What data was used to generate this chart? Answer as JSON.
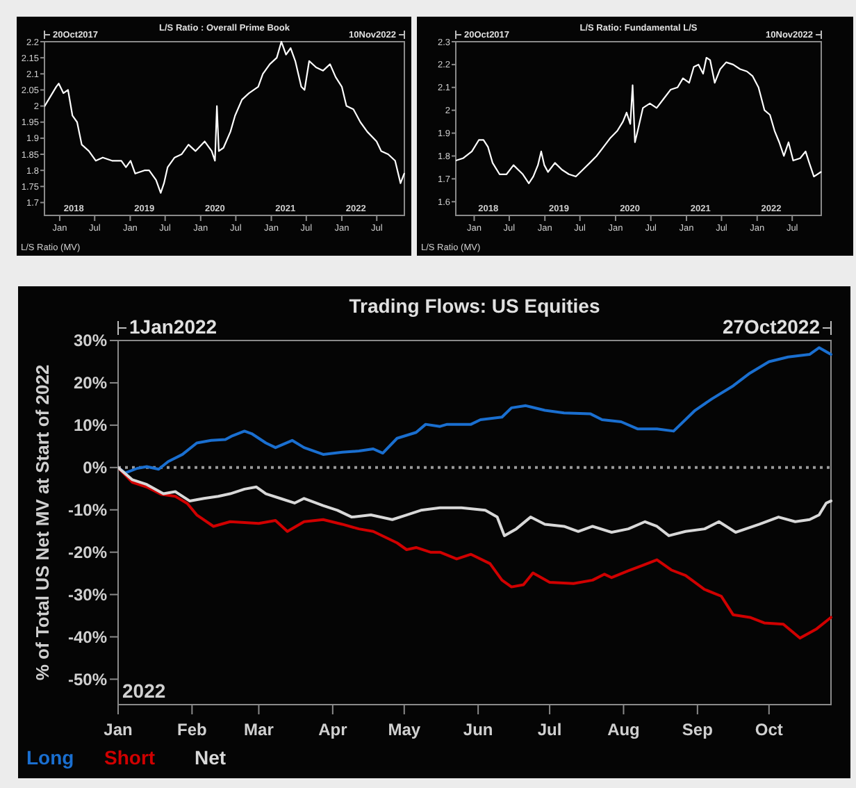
{
  "chart_data": [
    {
      "type": "line",
      "title": "L/S Ratio : Overall Prime Book",
      "ylabel": "L/S Ratio (MV)",
      "annotations": [
        "20Oct2017",
        "10Nov2022"
      ],
      "legend": false,
      "grid": false,
      "xlim": [
        "2017-10-14",
        "2022-11-21"
      ],
      "ylim": [
        1.66,
        2.2
      ],
      "xticks": [
        {
          "value": "2018-01-01",
          "label": "Jan"
        },
        {
          "value": "2018-07-01",
          "label": "Jul"
        },
        {
          "value": "2019-01-01",
          "label": "Jan"
        },
        {
          "value": "2019-07-01",
          "label": "Jul"
        },
        {
          "value": "2020-01-01",
          "label": "Jan"
        },
        {
          "value": "2020-07-01",
          "label": "Jul"
        },
        {
          "value": "2021-01-01",
          "label": "Jan"
        },
        {
          "value": "2021-07-01",
          "label": "Jul"
        },
        {
          "value": "2022-01-01",
          "label": "Jan"
        },
        {
          "value": "2022-07-01",
          "label": "Jul"
        }
      ],
      "x2lim": [
        "2017-10-14",
        "2022-11-21"
      ],
      "x2ticks": [
        {
          "value": "2018-03-15",
          "label": "2018"
        },
        {
          "value": "2019-03-15",
          "label": "2019"
        },
        {
          "value": "2020-03-15",
          "label": "2020"
        },
        {
          "value": "2021-03-15",
          "label": "2021"
        },
        {
          "value": "2022-03-15",
          "label": "2022"
        }
      ],
      "yticks": [
        1.7,
        1.75,
        1.8,
        1.85,
        1.9,
        1.95,
        2,
        2.05,
        2.1,
        2.15,
        2.2
      ],
      "series": [
        {
          "color": "#ffffff",
          "x": [
            "2017-10-15",
            "2017-12-14",
            "2017-12-27",
            "2018-01-20",
            "2018-02-13",
            "2018-03-08",
            "2018-04-01",
            "2018-04-25",
            "2018-06-01",
            "2018-07-07",
            "2018-08-12",
            "2018-09-29",
            "2018-11-16",
            "2018-12-10",
            "2019-01-03",
            "2019-01-27",
            "2019-03-16",
            "2019-04-09",
            "2019-05-15",
            "2019-06-08",
            "2019-06-25",
            "2019-07-14",
            "2019-08-19",
            "2019-09-24",
            "2019-10-30",
            "2019-12-05",
            "2020-01-22",
            "2020-02-27",
            "2020-03-15",
            "2020-03-25",
            "2020-04-04",
            "2020-04-28",
            "2020-06-03",
            "2020-06-27",
            "2020-08-02",
            "2020-09-07",
            "2020-10-25",
            "2020-11-18",
            "2020-12-24",
            "2021-01-29",
            "2021-02-22",
            "2021-03-18",
            "2021-04-11",
            "2021-05-05",
            "2021-06-05",
            "2021-06-22",
            "2021-07-16",
            "2021-08-21",
            "2021-09-26",
            "2021-11-01",
            "2021-11-30",
            "2022-01-01",
            "2022-01-25",
            "2022-03-02",
            "2022-04-07",
            "2022-05-13",
            "2022-06-30",
            "2022-07-24",
            "2022-08-29",
            "2022-10-04",
            "2022-11-01",
            "2022-11-20"
          ],
          "values": [
            2.0,
            2.06,
            2.07,
            2.04,
            2.05,
            1.97,
            1.95,
            1.88,
            1.86,
            1.83,
            1.84,
            1.83,
            1.83,
            1.81,
            1.83,
            1.79,
            1.8,
            1.8,
            1.77,
            1.73,
            1.76,
            1.81,
            1.84,
            1.85,
            1.88,
            1.86,
            1.89,
            1.86,
            1.83,
            2.0,
            1.86,
            1.87,
            1.92,
            1.97,
            2.02,
            2.04,
            2.06,
            2.1,
            2.13,
            2.15,
            2.2,
            2.16,
            2.18,
            2.14,
            2.06,
            2.05,
            2.14,
            2.12,
            2.11,
            2.13,
            2.09,
            2.06,
            2.0,
            1.99,
            1.95,
            1.92,
            1.89,
            1.86,
            1.85,
            1.83,
            1.76,
            1.79
          ]
        }
      ]
    },
    {
      "type": "line",
      "title": "L/S Ratio: Fundamental L/S",
      "ylabel": "L/S Ratio (MV)",
      "annotations": [
        "20Oct2017",
        "10Nov2022"
      ],
      "legend": false,
      "grid": false,
      "xlim": [
        "2017-09-28",
        "2022-11-28"
      ],
      "ylim": [
        1.54,
        2.3
      ],
      "xticks": [
        {
          "value": "2018-01-01",
          "label": "Jan"
        },
        {
          "value": "2018-07-01",
          "label": "Jul"
        },
        {
          "value": "2019-01-01",
          "label": "Jan"
        },
        {
          "value": "2019-07-01",
          "label": "Jul"
        },
        {
          "value": "2020-01-01",
          "label": "Jan"
        },
        {
          "value": "2020-07-01",
          "label": "Jul"
        },
        {
          "value": "2021-01-01",
          "label": "Jan"
        },
        {
          "value": "2021-07-01",
          "label": "Jul"
        },
        {
          "value": "2022-01-01",
          "label": "Jan"
        },
        {
          "value": "2022-07-01",
          "label": "Jul"
        }
      ],
      "x2lim": [
        "2017-09-28",
        "2022-11-28"
      ],
      "x2ticks": [
        {
          "value": "2018-03-15",
          "label": "2018"
        },
        {
          "value": "2019-03-15",
          "label": "2019"
        },
        {
          "value": "2020-03-15",
          "label": "2020"
        },
        {
          "value": "2021-03-15",
          "label": "2021"
        },
        {
          "value": "2022-03-15",
          "label": "2022"
        }
      ],
      "yticks": [
        1.6,
        1.7,
        1.8,
        1.9,
        2,
        2.1,
        2.2,
        2.3
      ],
      "series": [
        {
          "color": "#ffffff",
          "x": [
            "2017-09-28",
            "2017-11-04",
            "2017-12-20",
            "2018-01-25",
            "2018-02-18",
            "2018-03-13",
            "2018-04-06",
            "2018-05-12",
            "2018-06-17",
            "2018-07-23",
            "2018-08-16",
            "2018-09-09",
            "2018-10-10",
            "2018-11-02",
            "2018-11-26",
            "2018-12-13",
            "2018-12-29",
            "2019-01-17",
            "2019-02-22",
            "2019-03-30",
            "2019-05-05",
            "2019-06-10",
            "2019-07-16",
            "2019-08-21",
            "2019-09-25",
            "2019-10-31",
            "2019-12-06",
            "2020-01-10",
            "2020-02-08",
            "2020-02-27",
            "2020-03-17",
            "2020-03-29",
            "2020-04-10",
            "2020-04-27",
            "2020-05-21",
            "2020-06-26",
            "2020-07-31",
            "2020-09-05",
            "2020-10-11",
            "2020-11-16",
            "2020-12-14",
            "2021-01-15",
            "2021-02-08",
            "2021-03-04",
            "2021-03-28",
            "2021-04-14",
            "2021-05-03",
            "2021-05-27",
            "2021-06-24",
            "2021-07-25",
            "2021-08-30",
            "2021-10-05",
            "2021-11-09",
            "2021-12-08",
            "2022-01-08",
            "2022-02-08",
            "2022-03-08",
            "2022-04-01",
            "2022-04-25",
            "2022-05-19",
            "2022-06-12",
            "2022-07-06",
            "2022-08-11",
            "2022-09-08",
            "2022-09-27",
            "2022-10-21",
            "2022-11-26"
          ],
          "values": [
            1.78,
            1.79,
            1.82,
            1.87,
            1.87,
            1.84,
            1.77,
            1.72,
            1.72,
            1.76,
            1.74,
            1.72,
            1.68,
            1.71,
            1.76,
            1.82,
            1.76,
            1.73,
            1.77,
            1.74,
            1.72,
            1.71,
            1.74,
            1.77,
            1.8,
            1.84,
            1.88,
            1.91,
            1.95,
            1.99,
            1.94,
            2.11,
            1.86,
            1.92,
            2.01,
            2.03,
            2.01,
            2.05,
            2.09,
            2.1,
            2.14,
            2.12,
            2.19,
            2.2,
            2.16,
            2.23,
            2.22,
            2.12,
            2.18,
            2.21,
            2.2,
            2.18,
            2.17,
            2.15,
            2.1,
            2.0,
            1.98,
            1.91,
            1.86,
            1.8,
            1.86,
            1.78,
            1.79,
            1.82,
            1.77,
            1.71,
            1.73
          ]
        }
      ]
    },
    {
      "type": "line",
      "title": "Trading Flows: US Equities",
      "ylabel": "% of Total US Net MV at Start of 2022",
      "annotations": [
        "1Jan2022",
        "27Oct2022",
        "2022"
      ],
      "legend": "bottom left",
      "grid": false,
      "xlim": [
        "2022-01-01",
        "2022-10-27"
      ],
      "ylim": [
        -56,
        30
      ],
      "xticks": [
        {
          "value": "2022-01-01",
          "label": "Jan"
        },
        {
          "value": "2022-02-01",
          "label": "Feb"
        },
        {
          "value": "2022-03-01",
          "label": "Mar"
        },
        {
          "value": "2022-04-01",
          "label": "Apr"
        },
        {
          "value": "2022-05-01",
          "label": "May"
        },
        {
          "value": "2022-06-01",
          "label": "Jun"
        },
        {
          "value": "2022-07-01",
          "label": "Jul"
        },
        {
          "value": "2022-08-01",
          "label": "Aug"
        },
        {
          "value": "2022-09-01",
          "label": "Sep"
        },
        {
          "value": "2022-10-01",
          "label": "Oct"
        }
      ],
      "yticks": [
        {
          "value": 30,
          "label": "30%"
        },
        {
          "value": 20,
          "label": "20%"
        },
        {
          "value": 10,
          "label": "10%"
        },
        {
          "value": 0,
          "label": "0%"
        },
        {
          "value": -10,
          "label": "-10%"
        },
        {
          "value": -20,
          "label": "-20%"
        },
        {
          "value": -30,
          "label": "-30%"
        },
        {
          "value": -40,
          "label": "-40%"
        },
        {
          "value": -50,
          "label": "-50%"
        }
      ],
      "ref_lines": [
        {
          "axis": "y",
          "value": 0,
          "color": "#9a9a9a",
          "line_style": "dotted"
        }
      ],
      "series": [
        {
          "name": "Long",
          "color": "#1a6fd0",
          "x": [
            "2022-01-01",
            "2022-01-04",
            "2022-01-09",
            "2022-01-13",
            "2022-01-18",
            "2022-01-22",
            "2022-01-28",
            "2022-02-03",
            "2022-02-09",
            "2022-02-15",
            "2022-02-18",
            "2022-02-23",
            "2022-02-26",
            "2022-03-04",
            "2022-03-08",
            "2022-03-15",
            "2022-03-20",
            "2022-03-28",
            "2022-04-05",
            "2022-04-12",
            "2022-04-18",
            "2022-04-22",
            "2022-04-28",
            "2022-05-06",
            "2022-05-10",
            "2022-05-16",
            "2022-05-19",
            "2022-05-29",
            "2022-06-02",
            "2022-06-11",
            "2022-06-15",
            "2022-06-21",
            "2022-06-29",
            "2022-07-07",
            "2022-07-18",
            "2022-07-23",
            "2022-07-31",
            "2022-08-07",
            "2022-08-15",
            "2022-08-22",
            "2022-08-31",
            "2022-09-07",
            "2022-09-16",
            "2022-09-23",
            "2022-10-01",
            "2022-10-09",
            "2022-10-18",
            "2022-10-22",
            "2022-10-27"
          ],
          "values": [
            0,
            -1.3,
            -0.2,
            0.2,
            -0.4,
            1.4,
            3.1,
            5.8,
            6.4,
            6.6,
            7.5,
            8.6,
            8.0,
            5.8,
            4.7,
            6.4,
            4.7,
            3.1,
            3.6,
            3.9,
            4.4,
            3.4,
            6.9,
            8.3,
            10.2,
            9.7,
            10.2,
            10.2,
            11.3,
            11.9,
            14.1,
            14.6,
            13.5,
            12.9,
            12.7,
            11.3,
            10.8,
            9.1,
            9.1,
            8.6,
            13.5,
            16.2,
            19.3,
            22.3,
            25.0,
            26.1,
            26.7,
            28.3,
            26.7
          ]
        },
        {
          "name": "Short",
          "color": "#d00000",
          "x": [
            "2022-01-01",
            "2022-01-07",
            "2022-01-13",
            "2022-01-19",
            "2022-01-25",
            "2022-01-30",
            "2022-02-03",
            "2022-02-10",
            "2022-02-17",
            "2022-03-01",
            "2022-03-08",
            "2022-03-13",
            "2022-03-20",
            "2022-03-28",
            "2022-04-05",
            "2022-04-12",
            "2022-04-18",
            "2022-04-28",
            "2022-05-02",
            "2022-05-06",
            "2022-05-12",
            "2022-05-16",
            "2022-05-23",
            "2022-05-29",
            "2022-06-06",
            "2022-06-11",
            "2022-06-15",
            "2022-06-20",
            "2022-06-24",
            "2022-07-01",
            "2022-07-11",
            "2022-07-19",
            "2022-07-24",
            "2022-07-27",
            "2022-08-03",
            "2022-08-09",
            "2022-08-15",
            "2022-08-21",
            "2022-08-27",
            "2022-09-04",
            "2022-09-11",
            "2022-09-16",
            "2022-09-23",
            "2022-09-29",
            "2022-10-07",
            "2022-10-14",
            "2022-10-21",
            "2022-10-27"
          ],
          "values": [
            0,
            -3.5,
            -4.6,
            -6.3,
            -6.8,
            -8.5,
            -11.2,
            -13.9,
            -12.8,
            -13.2,
            -12.5,
            -15.1,
            -12.8,
            -12.3,
            -13.4,
            -14.5,
            -15.1,
            -17.8,
            -19.4,
            -18.9,
            -20.0,
            -20.0,
            -21.6,
            -20.5,
            -22.7,
            -26.6,
            -28.2,
            -27.7,
            -24.9,
            -27.1,
            -27.4,
            -26.6,
            -25.2,
            -26.0,
            -24.4,
            -23.1,
            -21.8,
            -24.2,
            -25.5,
            -28.8,
            -30.4,
            -34.8,
            -35.4,
            -36.7,
            -37.0,
            -40.3,
            -38.1,
            -35.4
          ]
        },
        {
          "name": "Net",
          "color": "#d8d8d8",
          "x": [
            "2022-01-01",
            "2022-01-07",
            "2022-01-13",
            "2022-01-20",
            "2022-01-25",
            "2022-01-31",
            "2022-02-06",
            "2022-02-12",
            "2022-02-17",
            "2022-02-23",
            "2022-02-28",
            "2022-03-04",
            "2022-03-10",
            "2022-03-16",
            "2022-03-20",
            "2022-03-28",
            "2022-04-03",
            "2022-04-09",
            "2022-04-17",
            "2022-04-26",
            "2022-05-02",
            "2022-05-08",
            "2022-05-16",
            "2022-05-25",
            "2022-06-04",
            "2022-06-09",
            "2022-06-12",
            "2022-06-17",
            "2022-06-23",
            "2022-06-29",
            "2022-07-07",
            "2022-07-13",
            "2022-07-19",
            "2022-07-27",
            "2022-08-03",
            "2022-08-10",
            "2022-08-15",
            "2022-08-20",
            "2022-08-27",
            "2022-09-04",
            "2022-09-10",
            "2022-09-17",
            "2022-09-27",
            "2022-10-05",
            "2022-10-12",
            "2022-10-18",
            "2022-10-22",
            "2022-10-25",
            "2022-10-27"
          ],
          "values": [
            0,
            -2.9,
            -4.0,
            -6.2,
            -5.7,
            -7.9,
            -7.3,
            -6.8,
            -6.2,
            -5.1,
            -4.6,
            -6.2,
            -7.3,
            -8.4,
            -7.3,
            -9.0,
            -10.1,
            -11.7,
            -11.2,
            -12.3,
            -11.2,
            -10.1,
            -9.5,
            -9.5,
            -10.1,
            -11.7,
            -16.1,
            -14.5,
            -11.7,
            -13.4,
            -13.9,
            -15.1,
            -13.9,
            -15.3,
            -14.5,
            -12.8,
            -13.9,
            -16.1,
            -15.1,
            -14.5,
            -12.8,
            -15.3,
            -13.4,
            -11.7,
            -12.8,
            -12.3,
            -11.2,
            -8.4,
            -7.9
          ]
        }
      ]
    }
  ]
}
